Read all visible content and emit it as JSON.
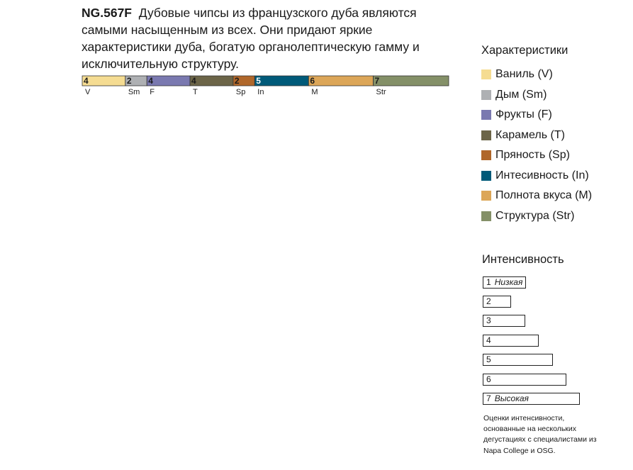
{
  "description": {
    "code": "NG.567F",
    "text": "Дубовые чипсы из французского дуба являются самыми насыщенным из всех. Они придают яркие характеристики дуба, богатую органолептическую гамму и исключительную структуру."
  },
  "chart_data": {
    "type": "bar",
    "orientation": "horizontal-stacked",
    "categories": [
      "V",
      "Sm",
      "F",
      "T",
      "Sp",
      "In",
      "M",
      "Str"
    ],
    "values": [
      4,
      2,
      4,
      4,
      2,
      5,
      6,
      7
    ],
    "colors": [
      "#F5DC92",
      "#AEB0B3",
      "#7A79B0",
      "#6C6548",
      "#B0672A",
      "#005A79",
      "#DCA658",
      "#849068"
    ],
    "legend_placement": "right"
  },
  "legend": {
    "title": "Характеристики",
    "items": [
      {
        "label": "Ваниль (V)",
        "color": "#F5DC92"
      },
      {
        "label": "Дым (Sm)",
        "color": "#AEB0B3"
      },
      {
        "label": "Фрукты (F)",
        "color": "#7A79B0"
      },
      {
        "label": "Карамель (T)",
        "color": "#6C6548"
      },
      {
        "label": "Пряность (Sp)",
        "color": "#B0672A"
      },
      {
        "label": "Интесивность (In)",
        "color": "#005A79"
      },
      {
        "label": "Полнота вкуса (M)",
        "color": "#DCA658"
      },
      {
        "label": "Структура (Str)",
        "color": "#849068"
      }
    ]
  },
  "intensity": {
    "title": "Интенсивность",
    "levels": [
      {
        "n": "1",
        "label": "Низкая"
      },
      {
        "n": "2",
        "label": ""
      },
      {
        "n": "3",
        "label": ""
      },
      {
        "n": "4",
        "label": ""
      },
      {
        "n": "5",
        "label": ""
      },
      {
        "n": "6",
        "label": ""
      },
      {
        "n": "7",
        "label": "Высокая"
      }
    ],
    "note": "Оценки интенсивности, основанные на нескольких дегустациях с специалистами из Napa College и OSG."
  }
}
